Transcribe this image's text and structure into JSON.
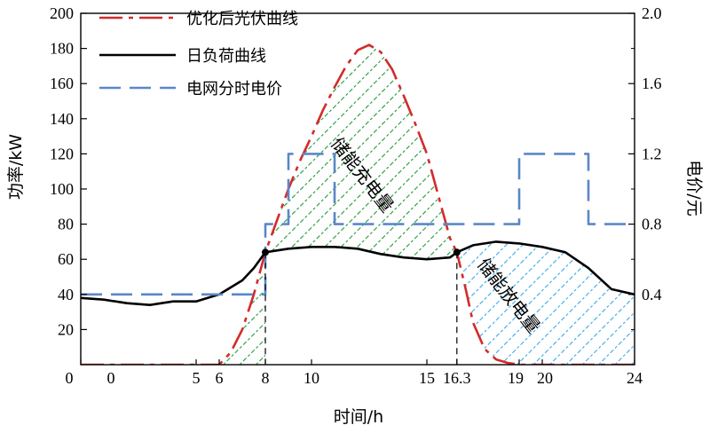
{
  "chart_data": {
    "type": "line",
    "xlabel": "时间/h",
    "ylabel": "功率/kW",
    "y2label": "电价/元",
    "xlim": [
      0,
      24
    ],
    "ylim": [
      0,
      200
    ],
    "y2lim": [
      0,
      2.0
    ],
    "y_ticks": [
      "20",
      "40",
      "60",
      "80",
      "100",
      "120",
      "140",
      "160",
      "180",
      "200"
    ],
    "y2_ticks": [
      "0.4",
      "0.8",
      "1.2",
      "1.6",
      "2.0"
    ],
    "x_ticks": [
      {
        "x": 0,
        "label": "0"
      },
      {
        "x": 5,
        "label": "5"
      },
      {
        "x": 6,
        "label": "6"
      },
      {
        "x": 8,
        "label": "8"
      },
      {
        "x": 10,
        "label": "10"
      },
      {
        "x": 15,
        "label": "15"
      },
      {
        "x": 16.3,
        "label": "16.3"
      },
      {
        "x": 19,
        "label": "19"
      },
      {
        "x": 20,
        "label": "20"
      },
      {
        "x": 24,
        "label": "24"
      }
    ],
    "origin_label": "0",
    "legend": [
      "优化后光伏曲线",
      "日负荷曲线",
      "电网分时电价"
    ],
    "legend_position": "top-left",
    "annotations": [
      "储能充电量",
      "储能放电量"
    ],
    "series": [
      {
        "name": "优化后光伏曲线",
        "color": "#d42a2a",
        "style": "dash-dot",
        "x": [
          0,
          6,
          6.5,
          7,
          7.5,
          8,
          8.5,
          9,
          9.5,
          10,
          10.5,
          11,
          11.5,
          12,
          12.5,
          13,
          13.5,
          14,
          14.5,
          15,
          15.5,
          16,
          16.3,
          16.7,
          17,
          17.5,
          18,
          18.5,
          19,
          24
        ],
        "values": [
          0,
          0,
          7,
          20,
          40,
          64,
          82,
          100,
          116,
          130,
          145,
          158,
          170,
          179,
          182,
          178,
          168,
          153,
          137,
          120,
          96,
          72,
          64,
          42,
          24,
          9,
          3,
          1,
          0,
          0
        ]
      },
      {
        "name": "日负荷曲线",
        "color": "#000000",
        "style": "solid",
        "x": [
          0,
          1,
          2,
          3,
          4,
          5,
          6,
          7,
          7.5,
          8,
          9,
          10,
          11,
          12,
          13,
          14,
          15,
          16,
          16.3,
          17,
          18,
          19,
          20,
          21,
          22,
          23,
          24
        ],
        "values": [
          38,
          37,
          35,
          34,
          36,
          36,
          40,
          48,
          55,
          64,
          66,
          67,
          67,
          66,
          63,
          61,
          60,
          61,
          64,
          68,
          70,
          69,
          67,
          64,
          55,
          43,
          40
        ]
      },
      {
        "name": "电网分时电价",
        "color": "#5b86c9",
        "style": "dashed",
        "axis": "right",
        "x": [
          0,
          8,
          8,
          9,
          9,
          11,
          11,
          19,
          19,
          22,
          22,
          24
        ],
        "values": [
          0.4,
          0.4,
          0.8,
          0.8,
          1.2,
          1.2,
          0.8,
          0.8,
          1.2,
          1.2,
          0.8,
          0.8
        ]
      }
    ],
    "markers": [
      {
        "x": 8,
        "y": 64
      },
      {
        "x": 16.3,
        "y": 64
      }
    ]
  }
}
